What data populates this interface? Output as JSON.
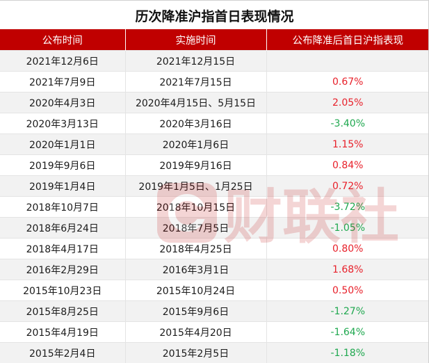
{
  "title": "历次降准沪指首日表现情况",
  "headers": [
    "公布时间",
    "实施时间",
    "公布降准后首日沪指表现"
  ],
  "rows": [
    {
      "announced": "2021年12月6日",
      "implemented": "2021年12月15日",
      "change": "",
      "sign": ""
    },
    {
      "announced": "2021年7月9日",
      "implemented": "2021年7月15日",
      "change": "0.67%",
      "sign": "pos"
    },
    {
      "announced": "2020年4月3日",
      "implemented": "2020年4月15日、5月15日",
      "change": "2.05%",
      "sign": "pos"
    },
    {
      "announced": "2020年3月13日",
      "implemented": "2020年3月16日",
      "change": "-3.40%",
      "sign": "neg"
    },
    {
      "announced": "2020年1月1日",
      "implemented": "2020年1月6日",
      "change": "1.15%",
      "sign": "pos"
    },
    {
      "announced": "2019年9月6日",
      "implemented": "2019年9月16日",
      "change": "0.84%",
      "sign": "pos"
    },
    {
      "announced": "2019年1月4日",
      "implemented": "2019年1月5日、1月25日",
      "change": "0.72%",
      "sign": "pos"
    },
    {
      "announced": "2018年10月7日",
      "implemented": "2018年10月15日",
      "change": "-3.72%",
      "sign": "neg"
    },
    {
      "announced": "2018年6月24日",
      "implemented": "2018年7月5日",
      "change": "-1.05%",
      "sign": "neg"
    },
    {
      "announced": "2018年4月17日",
      "implemented": "2018年4月25日",
      "change": "0.80%",
      "sign": "pos"
    },
    {
      "announced": "2016年2月29日",
      "implemented": "2016年3月1日",
      "change": "1.68%",
      "sign": "pos"
    },
    {
      "announced": "2015年10月23日",
      "implemented": "2015年10月24日",
      "change": "0.50%",
      "sign": "pos"
    },
    {
      "announced": "2015年8月25日",
      "implemented": "2015年9月6日",
      "change": "-1.27%",
      "sign": "neg"
    },
    {
      "announced": "2015年4月19日",
      "implemented": "2015年4月20日",
      "change": "-1.64%",
      "sign": "neg"
    },
    {
      "announced": "2015年2月4日",
      "implemented": "2015年2月5日",
      "change": "-1.18%",
      "sign": "neg"
    }
  ],
  "colors": {
    "header_bg": "#c00000",
    "positive": "#e8202a",
    "negative": "#1fa84f"
  },
  "watermark": {
    "text": "财联社",
    "icon": "cls-logo-icon"
  }
}
